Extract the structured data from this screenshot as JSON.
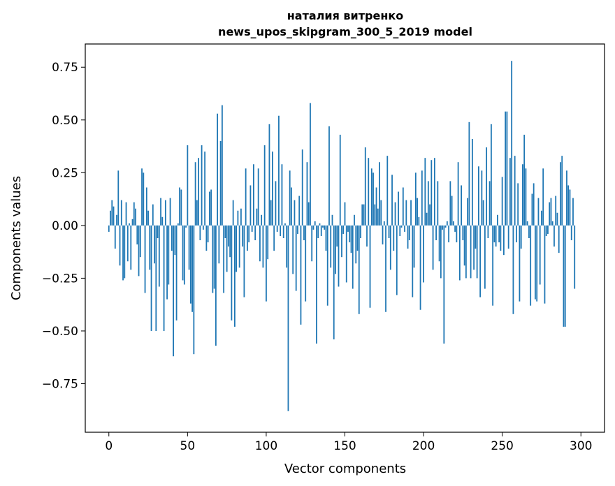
{
  "chart_data": {
    "type": "bar",
    "title": "наталия витренко",
    "subtitle": "news_upos_skipgram_300_5_2019 model",
    "xlabel": "Vector components",
    "ylabel": "Components values",
    "xlim": [
      -15,
      315
    ],
    "ylim": [
      -0.98,
      0.86
    ],
    "xticks": [
      0,
      50,
      100,
      150,
      200,
      250,
      300
    ],
    "xtick_labels": [
      "0",
      "50",
      "100",
      "150",
      "200",
      "250",
      "300"
    ],
    "yticks": [
      -0.75,
      -0.5,
      -0.25,
      0.0,
      0.25,
      0.5,
      0.75
    ],
    "ytick_labels": [
      "−0.75",
      "−0.50",
      "−0.25",
      "0.00",
      "0.25",
      "0.50",
      "0.75"
    ],
    "grid": false,
    "legend": "none",
    "bar_color": "#1f77b4",
    "x_start": 0,
    "values": [
      -0.03,
      0.07,
      0.12,
      0.09,
      -0.11,
      0.05,
      0.26,
      -0.19,
      0.12,
      -0.26,
      -0.25,
      0.11,
      -0.17,
      0.01,
      -0.21,
      0.03,
      0.11,
      0.08,
      -0.09,
      -0.24,
      -0.15,
      0.27,
      0.25,
      -0.32,
      0.18,
      0.07,
      -0.21,
      -0.5,
      0.1,
      -0.18,
      -0.5,
      -0.06,
      -0.29,
      0.13,
      0.04,
      -0.5,
      0.12,
      -0.35,
      -0.28,
      0.13,
      -0.12,
      -0.62,
      -0.14,
      -0.45,
      0.01,
      0.18,
      0.17,
      -0.26,
      -0.28,
      -0.01,
      0.38,
      -0.21,
      -0.37,
      -0.41,
      -0.61,
      0.3,
      0.12,
      0.32,
      -0.07,
      0.38,
      -0.02,
      0.35,
      -0.12,
      -0.08,
      0.16,
      0.17,
      -0.32,
      -0.3,
      -0.57,
      0.53,
      -0.18,
      0.4,
      0.57,
      -0.32,
      -0.06,
      -0.22,
      -0.1,
      -0.15,
      -0.45,
      0.12,
      -0.48,
      -0.22,
      0.07,
      -0.2,
      0.08,
      -0.1,
      -0.34,
      0.27,
      -0.12,
      -0.08,
      0.19,
      -0.03,
      0.29,
      -0.07,
      0.08,
      0.27,
      -0.17,
      0.05,
      -0.2,
      0.38,
      -0.36,
      -0.16,
      0.48,
      0.12,
      0.35,
      -0.12,
      0.21,
      -0.03,
      0.52,
      -0.05,
      0.29,
      -0.06,
      0.01,
      -0.2,
      -0.88,
      0.26,
      0.18,
      -0.23,
      0.12,
      -0.31,
      -0.04,
      0.14,
      -0.47,
      0.36,
      -0.07,
      -0.36,
      0.3,
      0.11,
      0.58,
      -0.17,
      -0.02,
      0.02,
      -0.56,
      -0.06,
      0.01,
      -0.05,
      -0.01,
      -0.02,
      -0.12,
      -0.38,
      0.47,
      -0.2,
      0.05,
      -0.54,
      -0.23,
      -0.1,
      -0.29,
      0.43,
      -0.15,
      -0.04,
      0.11,
      -0.27,
      -0.03,
      -0.08,
      -0.13,
      -0.3,
      0.05,
      -0.18,
      -0.12,
      -0.42,
      -0.06,
      0.1,
      0.1,
      0.37,
      -0.1,
      0.32,
      -0.39,
      0.27,
      0.25,
      0.1,
      0.18,
      0.08,
      0.3,
      0.12,
      -0.09,
      0.02,
      -0.41,
      0.33,
      -0.06,
      -0.21,
      0.24,
      -0.12,
      0.11,
      -0.33,
      0.16,
      -0.05,
      -0.01,
      0.18,
      -0.03,
      0.12,
      -0.11,
      -0.07,
      0.12,
      -0.34,
      -0.2,
      0.25,
      0.13,
      0.04,
      -0.4,
      0.26,
      -0.27,
      0.32,
      0.06,
      0.21,
      0.1,
      0.31,
      -0.21,
      0.32,
      -0.07,
      0.21,
      -0.17,
      -0.25,
      -0.02,
      -0.56,
      -0.01,
      0.02,
      -0.08,
      0.21,
      0.14,
      0.02,
      -0.03,
      -0.08,
      0.3,
      -0.26,
      0.19,
      -0.07,
      -0.19,
      -0.25,
      0.13,
      0.49,
      -0.25,
      0.41,
      -0.21,
      -0.11,
      -0.25,
      0.28,
      -0.34,
      0.26,
      0.12,
      -0.3,
      0.37,
      -0.06,
      0.21,
      0.48,
      -0.38,
      -0.08,
      -0.1,
      0.05,
      -0.08,
      -0.12,
      0.23,
      -0.14,
      0.54,
      0.54,
      -0.11,
      0.32,
      0.78,
      -0.42,
      0.33,
      -0.08,
      0.2,
      -0.36,
      -0.11,
      0.29,
      0.43,
      0.27,
      0.02,
      -0.06,
      -0.38,
      0.15,
      0.2,
      -0.35,
      -0.36,
      0.13,
      -0.28,
      0.07,
      0.27,
      -0.37,
      -0.05,
      -0.04,
      0.11,
      0.13,
      0.02,
      -0.1,
      0.14,
      0.06,
      -0.13,
      0.3,
      0.33,
      -0.48,
      -0.48,
      0.26,
      0.19,
      0.17,
      -0.07,
      0.13,
      -0.3
    ]
  }
}
